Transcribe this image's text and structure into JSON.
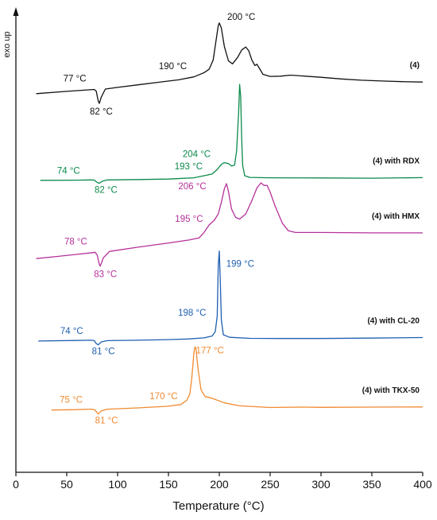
{
  "chart_data": {
    "type": "line",
    "title": "",
    "xlabel": "Temperature (°C)",
    "ylabel": "exo up",
    "xlim": [
      0,
      400
    ],
    "x_ticks": [
      0,
      50,
      100,
      150,
      200,
      250,
      300,
      350,
      400
    ],
    "y_ticks": false,
    "grid": false,
    "legend": "none; series labels printed at right end of each curve",
    "series": [
      {
        "name": "(4)",
        "color": "#111111",
        "y_offset": 0.0,
        "points": [
          [
            20,
            0.0
          ],
          [
            50,
            0.28
          ],
          [
            70,
            0.45
          ],
          [
            77,
            0.5
          ],
          [
            79,
            0.3
          ],
          [
            81,
            -0.9
          ],
          [
            82,
            -1.15
          ],
          [
            84,
            -0.4
          ],
          [
            88,
            0.55
          ],
          [
            100,
            0.75
          ],
          [
            120,
            1.05
          ],
          [
            140,
            1.35
          ],
          [
            160,
            1.65
          ],
          [
            175,
            2.0
          ],
          [
            185,
            2.5
          ],
          [
            190,
            2.9
          ],
          [
            194,
            4.0
          ],
          [
            197,
            6.5
          ],
          [
            199,
            8.1
          ],
          [
            200,
            8.4
          ],
          [
            202,
            7.8
          ],
          [
            205,
            5.6
          ],
          [
            209,
            3.9
          ],
          [
            213,
            3.55
          ],
          [
            218,
            4.3
          ],
          [
            222,
            5.2
          ],
          [
            226,
            5.55
          ],
          [
            229,
            5.1
          ],
          [
            232,
            4.0
          ],
          [
            235,
            3.35
          ],
          [
            237,
            3.5
          ],
          [
            239,
            3.1
          ],
          [
            243,
            2.3
          ],
          [
            250,
            2.05
          ],
          [
            260,
            2.08
          ],
          [
            270,
            2.2
          ],
          [
            280,
            2.12
          ],
          [
            300,
            1.95
          ],
          [
            320,
            1.75
          ],
          [
            340,
            1.6
          ],
          [
            360,
            1.5
          ],
          [
            380,
            1.43
          ],
          [
            400,
            1.38
          ]
        ]
      },
      {
        "name": "(4) with RDX",
        "color": "#0a8a4a",
        "y_offset": -10.3,
        "points": [
          [
            24,
            0.0
          ],
          [
            60,
            0.02
          ],
          [
            72,
            0.05
          ],
          [
            74,
            0.05
          ],
          [
            77,
            0.03
          ],
          [
            80,
            -0.25
          ],
          [
            82,
            -0.35
          ],
          [
            85,
            -0.1
          ],
          [
            90,
            0.05
          ],
          [
            120,
            0.1
          ],
          [
            150,
            0.15
          ],
          [
            175,
            0.3
          ],
          [
            185,
            0.55
          ],
          [
            193,
            0.75
          ],
          [
            198,
            1.3
          ],
          [
            202,
            1.9
          ],
          [
            205,
            2.1
          ],
          [
            209,
            2.0
          ],
          [
            212,
            1.7
          ],
          [
            215,
            1.8
          ],
          [
            217,
            3.5
          ],
          [
            219,
            8.0
          ],
          [
            220,
            11.4
          ],
          [
            221,
            10.0
          ],
          [
            222,
            5.0
          ],
          [
            223,
            1.8
          ],
          [
            225,
            0.55
          ],
          [
            230,
            0.35
          ],
          [
            250,
            0.3
          ],
          [
            300,
            0.28
          ],
          [
            350,
            0.26
          ],
          [
            400,
            0.32
          ]
        ]
      },
      {
        "name": "(4) with HMX",
        "color": "#b5309a",
        "y_offset": -19.6,
        "points": [
          [
            20,
            0.0
          ],
          [
            40,
            0.25
          ],
          [
            60,
            0.5
          ],
          [
            75,
            0.7
          ],
          [
            78,
            0.75
          ],
          [
            80,
            0.4
          ],
          [
            82,
            -0.7
          ],
          [
            83,
            -0.9
          ],
          [
            86,
            0.1
          ],
          [
            92,
            0.85
          ],
          [
            120,
            1.35
          ],
          [
            150,
            1.85
          ],
          [
            170,
            2.2
          ],
          [
            180,
            2.45
          ],
          [
            185,
            3.1
          ],
          [
            190,
            4.0
          ],
          [
            195,
            4.55
          ],
          [
            199,
            5.3
          ],
          [
            202,
            6.7
          ],
          [
            205,
            8.3
          ],
          [
            207,
            8.9
          ],
          [
            209,
            8.0
          ],
          [
            212,
            5.9
          ],
          [
            216,
            4.9
          ],
          [
            220,
            4.7
          ],
          [
            226,
            5.3
          ],
          [
            232,
            6.9
          ],
          [
            237,
            8.4
          ],
          [
            241,
            9.0
          ],
          [
            244,
            8.7
          ],
          [
            247,
            8.7
          ],
          [
            250,
            7.9
          ],
          [
            255,
            6.2
          ],
          [
            262,
            4.2
          ],
          [
            268,
            3.3
          ],
          [
            275,
            3.1
          ],
          [
            300,
            3.1
          ],
          [
            350,
            3.05
          ],
          [
            400,
            3.05
          ]
        ]
      },
      {
        "name": "(4) with CL-20",
        "color": "#1f5fb0",
        "y_offset": -29.4,
        "points": [
          [
            22,
            0.0
          ],
          [
            60,
            0.07
          ],
          [
            74,
            0.1
          ],
          [
            77,
            0.05
          ],
          [
            79,
            -0.3
          ],
          [
            81,
            -0.45
          ],
          [
            84,
            -0.1
          ],
          [
            90,
            0.05
          ],
          [
            120,
            0.1
          ],
          [
            150,
            0.17
          ],
          [
            170,
            0.25
          ],
          [
            185,
            0.38
          ],
          [
            193,
            0.6
          ],
          [
            196,
            1.1
          ],
          [
            198,
            3.0
          ],
          [
            199,
            9.0
          ],
          [
            200,
            10.7
          ],
          [
            201,
            7.0
          ],
          [
            202,
            2.5
          ],
          [
            204,
            0.75
          ],
          [
            210,
            0.45
          ],
          [
            230,
            0.32
          ],
          [
            260,
            0.3
          ],
          [
            300,
            0.3
          ],
          [
            350,
            0.35
          ],
          [
            400,
            0.42
          ]
        ]
      },
      {
        "name": "(4) with TKX-50",
        "color": "#f08a30",
        "y_offset": -37.6,
        "points": [
          [
            35,
            0.0
          ],
          [
            60,
            0.05
          ],
          [
            72,
            0.1
          ],
          [
            75,
            0.1
          ],
          [
            78,
            0.0
          ],
          [
            80,
            -0.35
          ],
          [
            81,
            -0.45
          ],
          [
            84,
            -0.1
          ],
          [
            90,
            0.1
          ],
          [
            120,
            0.25
          ],
          [
            150,
            0.45
          ],
          [
            162,
            0.65
          ],
          [
            168,
            1.15
          ],
          [
            171,
            1.9
          ],
          [
            173,
            3.8
          ],
          [
            175,
            6.8
          ],
          [
            176,
            7.5
          ],
          [
            177,
            7.3
          ],
          [
            179,
            5.0
          ],
          [
            182,
            2.4
          ],
          [
            186,
            1.6
          ],
          [
            190,
            1.5
          ],
          [
            195,
            1.3
          ],
          [
            205,
            0.85
          ],
          [
            220,
            0.5
          ],
          [
            250,
            0.3
          ],
          [
            280,
            0.35
          ],
          [
            300,
            0.32
          ],
          [
            350,
            0.35
          ],
          [
            400,
            0.37
          ]
        ]
      }
    ],
    "annotations": [
      {
        "text": "200 °C",
        "series": 0,
        "x": 200,
        "color": "#111111"
      },
      {
        "text": "190 °C",
        "series": 0,
        "x": 190,
        "color": "#111111"
      },
      {
        "text": "77 °C",
        "series": 0,
        "x": 77,
        "color": "#111111"
      },
      {
        "text": "82 °C",
        "series": 0,
        "x": 82,
        "color": "#111111"
      },
      {
        "text": "204 °C",
        "series": 1,
        "x": 204,
        "color": "#0a8a4a"
      },
      {
        "text": "193 °C",
        "series": 1,
        "x": 193,
        "color": "#0a8a4a"
      },
      {
        "text": "74 °C",
        "series": 1,
        "x": 74,
        "color": "#0a8a4a"
      },
      {
        "text": "82 °C",
        "series": 1,
        "x": 82,
        "color": "#0a8a4a"
      },
      {
        "text": "206 °C",
        "series": 2,
        "x": 206,
        "color": "#b5309a"
      },
      {
        "text": "195 °C",
        "series": 2,
        "x": 195,
        "color": "#b5309a"
      },
      {
        "text": "78 °C",
        "series": 2,
        "x": 78,
        "color": "#b5309a"
      },
      {
        "text": "83 °C",
        "series": 2,
        "x": 83,
        "color": "#b5309a"
      },
      {
        "text": "199 °C",
        "series": 3,
        "x": 199,
        "color": "#1f5fb0"
      },
      {
        "text": "198 °C",
        "series": 3,
        "x": 198,
        "color": "#1f5fb0"
      },
      {
        "text": "74 °C",
        "series": 3,
        "x": 74,
        "color": "#1f5fb0"
      },
      {
        "text": "81 °C",
        "series": 3,
        "x": 81,
        "color": "#1f5fb0"
      },
      {
        "text": "177 °C",
        "series": 4,
        "x": 177,
        "color": "#f08a30"
      },
      {
        "text": "170 °C",
        "series": 4,
        "x": 170,
        "color": "#f08a30"
      },
      {
        "text": "75 °C",
        "series": 4,
        "x": 75,
        "color": "#f08a30"
      },
      {
        "text": "81 °C",
        "series": 4,
        "x": 81,
        "color": "#f08a30"
      }
    ]
  }
}
